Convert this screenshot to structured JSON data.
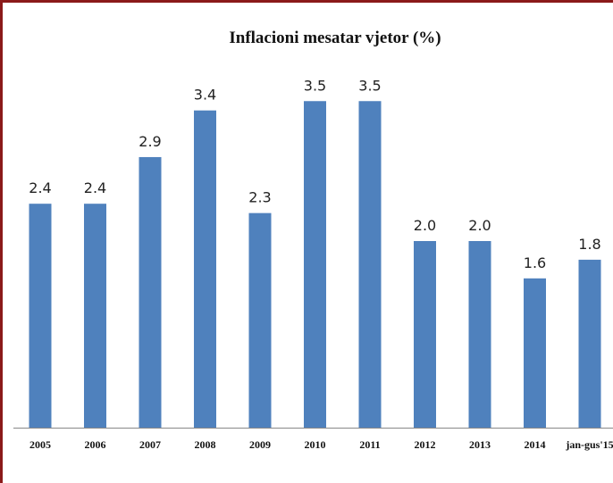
{
  "chart_data": {
    "type": "bar",
    "title": "Inflacioni mesatar vjetor (%)",
    "categories": [
      "2005",
      "2006",
      "2007",
      "2008",
      "2009",
      "2010",
      "2011",
      "2012",
      "2013",
      "2014",
      "jan-gus'15"
    ],
    "values": [
      2.4,
      2.4,
      2.9,
      3.4,
      2.3,
      3.5,
      3.5,
      2.0,
      2.0,
      1.6,
      1.8
    ],
    "value_labels": [
      "2.4",
      "2.4",
      "2.9",
      "3.4",
      "2.3",
      "3.5",
      "3.5",
      "2.0",
      "2.0",
      "1.6",
      "1.8"
    ],
    "color": "#4f81bd",
    "ylim": [
      0,
      4
    ]
  }
}
